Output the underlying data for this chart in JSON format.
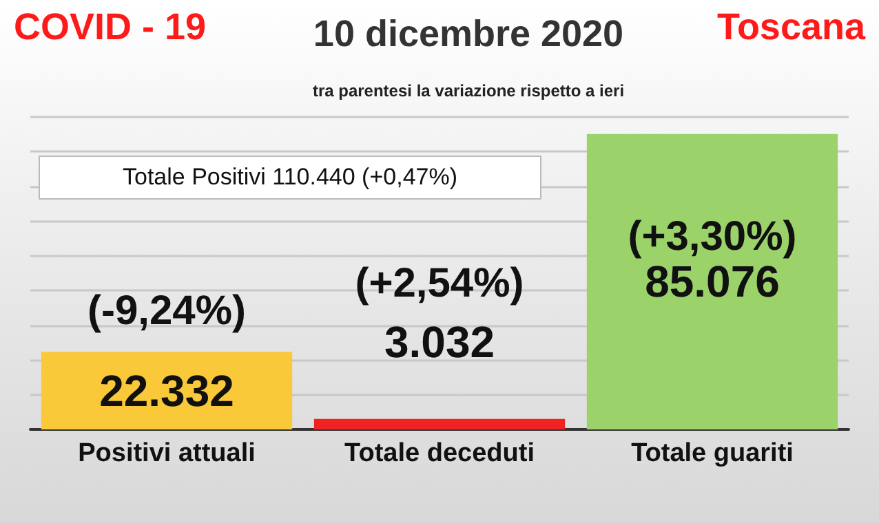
{
  "chart_data": {
    "type": "bar",
    "title": "10 dicembre 2020",
    "subtitle": "tra parentesi la variazione rispetto a ieri",
    "categories": [
      "Positivi attuali",
      "Totale deceduti",
      "Totale guariti"
    ],
    "values": [
      22332,
      3032,
      85076
    ],
    "colors": [
      "#f9c93a",
      "#f02222",
      "#9bd36a"
    ],
    "value_labels": [
      "22.332",
      "3.032",
      "85.076"
    ],
    "ylim": [
      0,
      90000
    ],
    "yticks": [
      {
        "value": 0,
        "label": null
      },
      {
        "value": 10000,
        "label": null
      },
      {
        "value": 20000,
        "label": null
      },
      {
        "value": 30000,
        "label": null
      },
      {
        "value": 40000,
        "label": null
      },
      {
        "value": 50000,
        "label": null
      },
      {
        "value": 60000,
        "label": null
      },
      {
        "value": 70000,
        "label": null
      },
      {
        "value": 80000,
        "label": null
      },
      {
        "value": 90000,
        "label": null
      }
    ],
    "grid": "y",
    "annotations": [
      "COVID - 19",
      "Toscana",
      "Totale Positivi 110.440 (+0,47%)",
      "(-9,24%)",
      "(+2,54%)",
      "(+3,30%)"
    ]
  }
}
